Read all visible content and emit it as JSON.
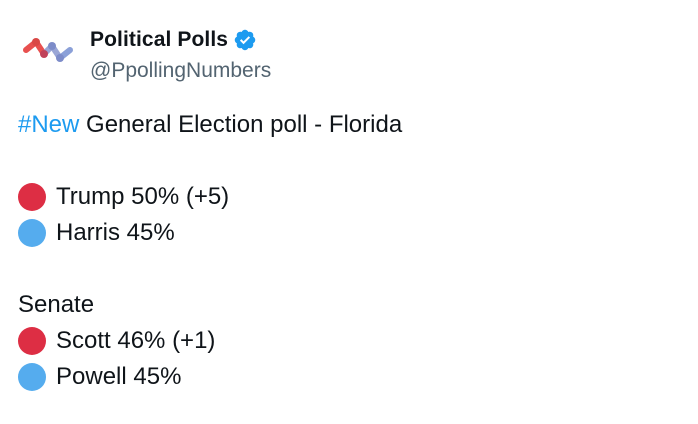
{
  "account": {
    "display_name": "Political Polls",
    "handle": "@PpollingNumbers",
    "verified_icon": "verified-badge-icon",
    "avatar_icon": "political-polls-logo"
  },
  "tweet": {
    "hashtag": "#New",
    "headline": " General Election poll - Florida",
    "presidential": [
      {
        "color_name": "red-circle",
        "color": "#dd2e44",
        "text": "Trump 50% (+5)"
      },
      {
        "color_name": "blue-circle",
        "color": "#55acee",
        "text": "Harris 45%"
      }
    ],
    "senate_label": "Senate",
    "senate": [
      {
        "color_name": "red-circle",
        "color": "#dd2e44",
        "text": "Scott 46% (+1)"
      },
      {
        "color_name": "blue-circle",
        "color": "#55acee",
        "text": "Powell 45%"
      }
    ]
  },
  "colors": {
    "accent": "#1d9bf0",
    "secondary_text": "#536471",
    "primary_text": "#0f1419"
  }
}
